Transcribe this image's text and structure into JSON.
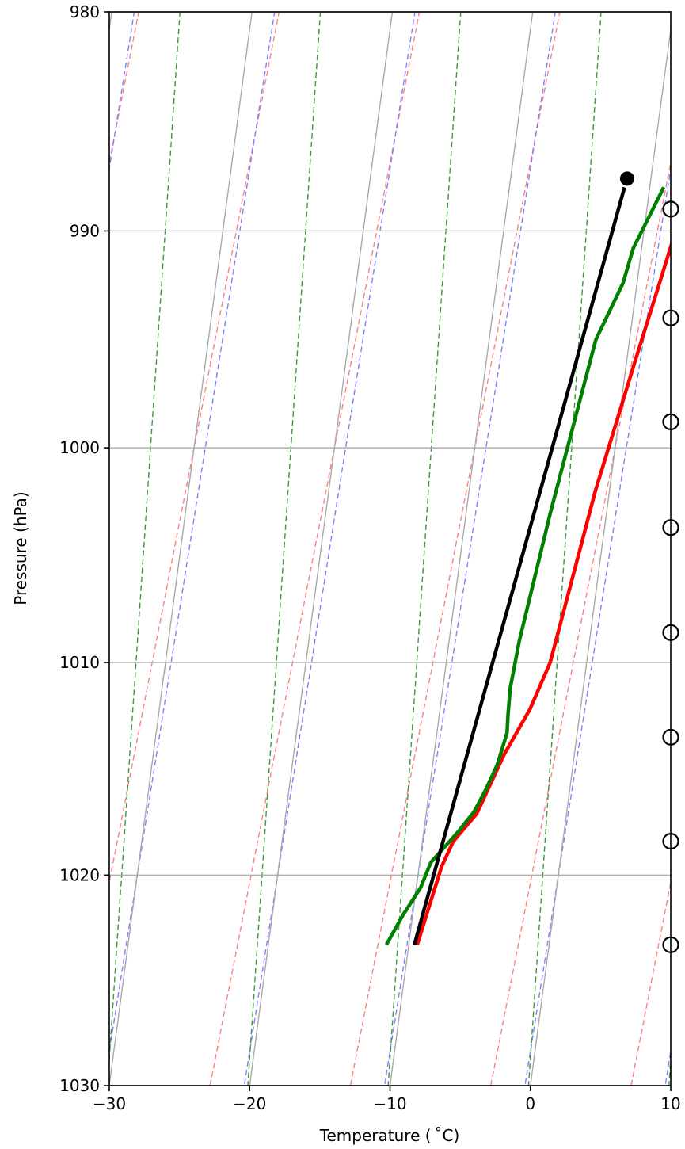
{
  "chart_data": {
    "type": "line",
    "title": "",
    "xlabel": "Temperature ($^\\circ$C)",
    "xlabel_display": "Temperature ( ˚C)",
    "ylabel": "Pressure (hPa)",
    "xlim": [
      -30,
      10
    ],
    "ylim": [
      1030,
      980
    ],
    "y_scale": "log",
    "grid": true,
    "x_ticks": [
      -30,
      -20,
      -10,
      0,
      10
    ],
    "x_tick_labels": [
      "−30",
      "−20",
      "−10",
      "0",
      "10"
    ],
    "y_ticks": [
      980,
      990,
      1000,
      1010,
      1020,
      1030
    ],
    "y_tick_labels": [
      "980",
      "990",
      "1000",
      "1010",
      "1020",
      "1030"
    ],
    "skew": "skew-T",
    "series": [
      {
        "color": "#ff0000",
        "points": [
          [
            -9.4,
            1023.3
          ],
          [
            -8.4,
            1019.6
          ],
          [
            -7.8,
            1018.4
          ],
          [
            -6.4,
            1017.1
          ],
          [
            -5.8,
            1015.9
          ],
          [
            -5.0,
            1014.3
          ],
          [
            -3.6,
            1012.2
          ],
          [
            -2.6,
            1010.0
          ],
          [
            -2.0,
            1007.0
          ],
          [
            -1.0,
            1002.0
          ],
          [
            0.6,
            996.0
          ],
          [
            1.6,
            992.4
          ],
          [
            2.8,
            988.0
          ]
        ]
      },
      {
        "color": "#008000",
        "points": [
          [
            -11.6,
            1023.3
          ],
          [
            -10.7,
            1021.9
          ],
          [
            -9.7,
            1020.6
          ],
          [
            -9.2,
            1019.4
          ],
          [
            -7.6,
            1018.0
          ],
          [
            -6.6,
            1017.0
          ],
          [
            -6.0,
            1016.0
          ],
          [
            -5.4,
            1014.8
          ],
          [
            -5.0,
            1013.3
          ],
          [
            -5.1,
            1012.5
          ],
          [
            -5.2,
            1011.2
          ],
          [
            -5.0,
            1009.0
          ],
          [
            -4.0,
            1003.0
          ],
          [
            -2.4,
            995.0
          ],
          [
            -1.0,
            992.4
          ],
          [
            -0.6,
            990.8
          ],
          [
            1.0,
            988.0
          ]
        ]
      },
      {
        "color": "#000000",
        "points": [
          [
            -9.6,
            1023.3
          ],
          [
            -1.8,
            988.0
          ]
        ]
      }
    ],
    "markers": {
      "filled_point": [
        -1.7,
        987.6
      ],
      "wind_barb_circles_pressure": [
        989.0,
        994.0,
        998.8,
        1003.7,
        1008.6,
        1013.5,
        1018.4,
        1023.3
      ]
    },
    "background_lines": {
      "isotherms_deg_c": [
        -40,
        -30,
        -20,
        -10,
        0,
        10,
        20
      ],
      "dry_adiabats_color": "#ff8080",
      "moist_adiabats_color": "#8080ff",
      "mixing_ratio_color": "#3c9a3c",
      "isotherm_color": "#aaaaaa"
    }
  }
}
